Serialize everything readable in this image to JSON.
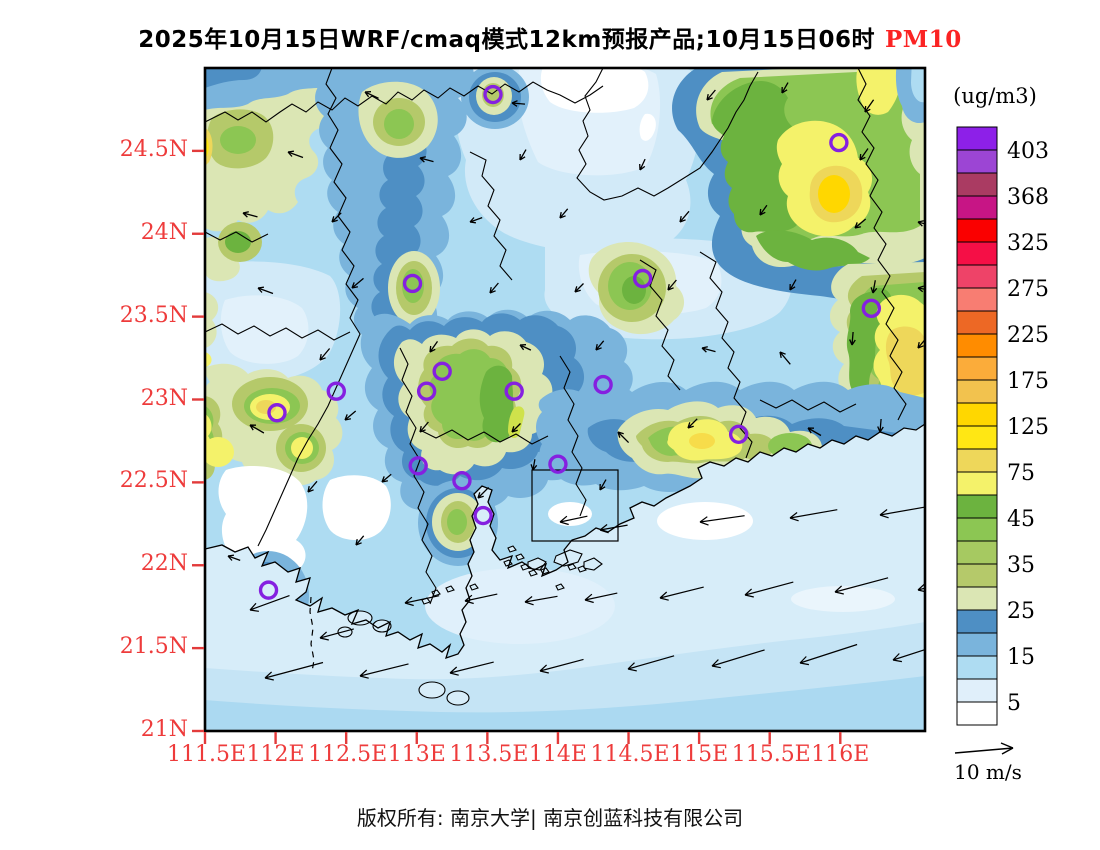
{
  "title": {
    "prefix": "2025年10月15日WRF/cmaq模式12km预报产品;10月15日06时",
    "pollutant": "PM10",
    "pollutant_color": "#fb2323"
  },
  "colorbar": {
    "unit": "(ug/m3)",
    "tick_values_top_to_bottom": [
      "403",
      "368",
      "325",
      "275",
      "225",
      "175",
      "125",
      "75",
      "45",
      "35",
      "25",
      "15",
      "5"
    ],
    "segment_colors_bottom_to_top": [
      "#ffffff",
      "#e0effa",
      "#aedcf2",
      "#7ab4dc",
      "#4e8fc4",
      "#dbe6b4",
      "#b5c96a",
      "#a6c961",
      "#8cc653",
      "#6cb33f",
      "#f4f26a",
      "#eed75a",
      "#ffe714",
      "#ffd700",
      "#f2c24e",
      "#fbac3a",
      "#ff8c00",
      "#ed6825",
      "#f87d72",
      "#ee4368",
      "#f50f46",
      "#fa0000",
      "#c71585",
      "#aa3b62",
      "#9c45d4",
      "#8d20e8"
    ]
  },
  "axes": {
    "lat_labels_top_to_bottom": [
      "24.5N",
      "24N",
      "23.5N",
      "23N",
      "22.5N",
      "22N",
      "21.5N",
      "21N"
    ],
    "lon_labels_left_to_right": [
      "111.5E",
      "112E",
      "112.5E",
      "113E",
      "113.5E",
      "114E",
      "114.5E",
      "115E",
      "115.5E",
      "116E"
    ],
    "label_color": "#ee3b3b",
    "tick_color": "#e23b3b"
  },
  "wind_legend": {
    "label": "10 m/s"
  },
  "footer": {
    "text": "版权所有: 南京大学| 南京创蓝科技有限公司"
  },
  "map": {
    "extent": {
      "lon_min": 111.5,
      "lon_max": 116.6,
      "lat_min": 21.0,
      "lat_max": 25.0
    },
    "station_marker_color": "#8520e0",
    "stations_lonlat": [
      [
        113.54,
        24.84
      ],
      [
        115.99,
        24.55
      ],
      [
        114.6,
        23.73
      ],
      [
        116.22,
        23.55
      ],
      [
        112.97,
        23.7
      ],
      [
        112.43,
        23.05
      ],
      [
        112.01,
        22.92
      ],
      [
        113.18,
        23.17
      ],
      [
        113.07,
        23.05
      ],
      [
        113.69,
        23.05
      ],
      [
        114.32,
        23.09
      ],
      [
        113.01,
        22.6
      ],
      [
        113.32,
        22.51
      ],
      [
        114.0,
        22.61
      ],
      [
        113.47,
        22.3
      ],
      [
        115.28,
        22.79
      ],
      [
        111.95,
        21.85
      ]
    ],
    "wind_arrows_land_xyal": [
      [
        365,
        92,
        205,
        15
      ],
      [
        512,
        103,
        185,
        13
      ],
      [
        707,
        100,
        130,
        13
      ],
      [
        782,
        93,
        120,
        12
      ],
      [
        865,
        112,
        125,
        15
      ],
      [
        288,
        152,
        200,
        16
      ],
      [
        420,
        158,
        195,
        14
      ],
      [
        520,
        160,
        120,
        12
      ],
      [
        640,
        170,
        115,
        12
      ],
      [
        860,
        160,
        125,
        14
      ],
      [
        243,
        213,
        195,
        15
      ],
      [
        332,
        222,
        135,
        13
      ],
      [
        470,
        222,
        160,
        13
      ],
      [
        560,
        218,
        130,
        12
      ],
      [
        680,
        222,
        130,
        14
      ],
      [
        760,
        215,
        125,
        12
      ],
      [
        855,
        228,
        140,
        14
      ],
      [
        918,
        222,
        195,
        12
      ],
      [
        258,
        288,
        200,
        16
      ],
      [
        352,
        288,
        140,
        15
      ],
      [
        490,
        293,
        130,
        13
      ],
      [
        575,
        292,
        135,
        12
      ],
      [
        668,
        290,
        130,
        13
      ],
      [
        790,
        290,
        120,
        12
      ],
      [
        873,
        293,
        100,
        13
      ],
      [
        918,
        288,
        190,
        12
      ],
      [
        320,
        360,
        130,
        15
      ],
      [
        430,
        352,
        125,
        13
      ],
      [
        520,
        345,
        205,
        12
      ],
      [
        596,
        350,
        130,
        12
      ],
      [
        702,
        348,
        195,
        14
      ],
      [
        780,
        352,
        230,
        16
      ],
      [
        852,
        345,
        95,
        13
      ],
      [
        918,
        348,
        130,
        12
      ],
      [
        250,
        425,
        210,
        16
      ],
      [
        345,
        420,
        140,
        14
      ],
      [
        420,
        432,
        130,
        13
      ],
      [
        512,
        432,
        135,
        12
      ],
      [
        618,
        432,
        225,
        15
      ],
      [
        688,
        428,
        135,
        13
      ],
      [
        808,
        428,
        210,
        15
      ],
      [
        880,
        432,
        95,
        13
      ],
      [
        308,
        492,
        130,
        14
      ],
      [
        382,
        482,
        140,
        12
      ],
      [
        478,
        498,
        135,
        15
      ],
      [
        533,
        470,
        100,
        11
      ],
      [
        600,
        490,
        120,
        12
      ],
      [
        228,
        556,
        200,
        13
      ],
      [
        356,
        545,
        130,
        12
      ]
    ],
    "wind_arrows_sea_xyal": [
      [
        560,
        522,
        168,
        28
      ],
      [
        600,
        530,
        170,
        28
      ],
      [
        700,
        522,
        172,
        45
      ],
      [
        790,
        518,
        170,
        48
      ],
      [
        880,
        515,
        170,
        45
      ],
      [
        250,
        610,
        160,
        42
      ],
      [
        405,
        603,
        168,
        35
      ],
      [
        465,
        601,
        168,
        33
      ],
      [
        525,
        602,
        170,
        33
      ],
      [
        585,
        600,
        168,
        33
      ],
      [
        660,
        598,
        166,
        45
      ],
      [
        745,
        595,
        165,
        50
      ],
      [
        835,
        592,
        165,
        55
      ],
      [
        918,
        590,
        165,
        45
      ],
      [
        320,
        638,
        165,
        35
      ],
      [
        265,
        678,
        165,
        60
      ],
      [
        360,
        676,
        166,
        50
      ],
      [
        450,
        673,
        166,
        45
      ],
      [
        540,
        671,
        165,
        45
      ],
      [
        628,
        669,
        164,
        48
      ],
      [
        712,
        666,
        163,
        55
      ],
      [
        800,
        663,
        162,
        60
      ],
      [
        893,
        660,
        162,
        60
      ]
    ]
  }
}
